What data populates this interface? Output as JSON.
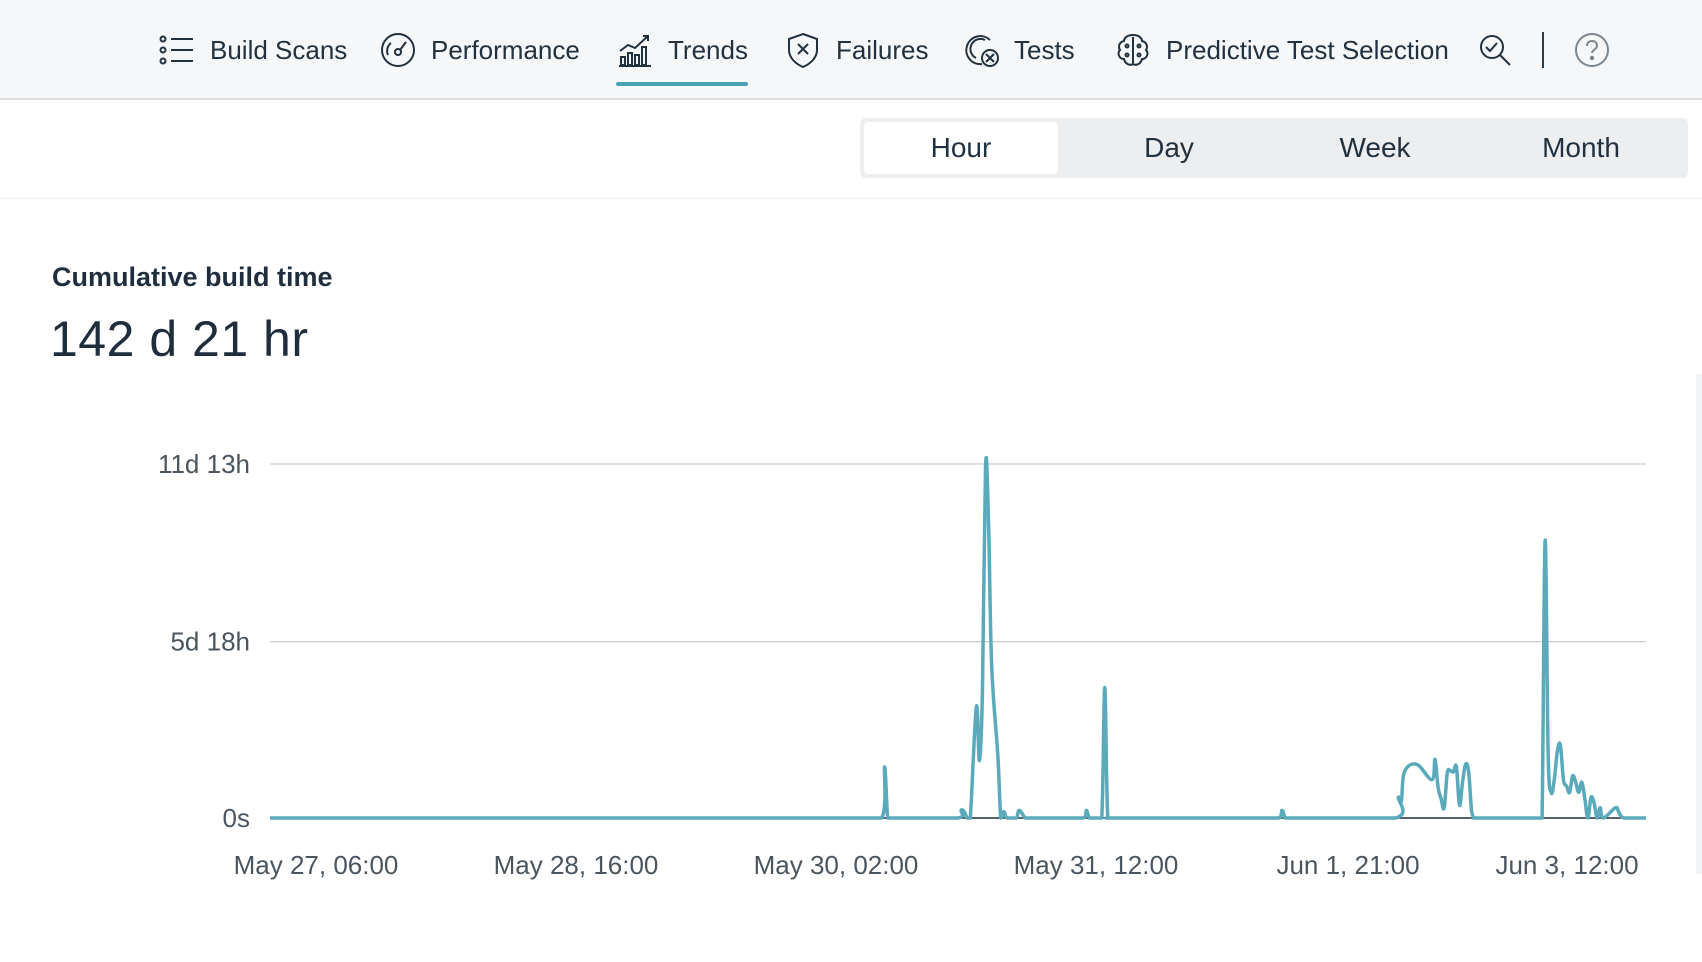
{
  "nav": {
    "items": [
      {
        "label": "Build Scans",
        "icon": "list-icon"
      },
      {
        "label": "Performance",
        "icon": "gauge-icon"
      },
      {
        "label": "Trends",
        "icon": "trend-chart-icon",
        "active": true
      },
      {
        "label": "Failures",
        "icon": "shield-x-icon"
      },
      {
        "label": "Tests",
        "icon": "tests-icon"
      },
      {
        "label": "Predictive Test Selection",
        "icon": "brain-icon"
      }
    ],
    "search_icon": "search-icon",
    "help_icon": "help-circle-icon",
    "accent": "#4aa3b5"
  },
  "granularity": {
    "options": [
      "Hour",
      "Day",
      "Week",
      "Month"
    ],
    "selected": "Hour"
  },
  "metric": {
    "label": "Cumulative build time",
    "value": "142 d 21 hr"
  },
  "chart_data": {
    "type": "line",
    "title": "",
    "xlabel": "",
    "ylabel": "",
    "y_ticks": [
      "0s",
      "5d 18h",
      "11d 13h"
    ],
    "x_ticks": [
      "May 27, 06:00",
      "May 28, 16:00",
      "May 30, 02:00",
      "May 31, 12:00",
      "Jun 1, 21:00",
      "Jun 3, 12:00"
    ],
    "ylim_hours": [
      0,
      277
    ],
    "grid": true,
    "color": "#5aaabb",
    "series": [
      {
        "x_hour_index": [
          0,
          40,
          80,
          120,
          160,
          190,
          200,
          201,
          202,
          203,
          204,
          210,
          225,
          226,
          227,
          228,
          229,
          231,
          232,
          233,
          234,
          235,
          236,
          238,
          239,
          240,
          241,
          244,
          245,
          247,
          248,
          250,
          255,
          260,
          266,
          267,
          268,
          270,
          272,
          273,
          274,
          276,
          300,
          325,
          330,
          331,
          332,
          333,
          340,
          368,
          369,
          370,
          371,
          375,
          380,
          381,
          382,
          383,
          384,
          385,
          386,
          387,
          388,
          389,
          390,
          391,
          392,
          393,
          394,
          395,
          410,
          411,
          412,
          413,
          414,
          415,
          416,
          417,
          418,
          419,
          420,
          421,
          422,
          423,
          424,
          425,
          426,
          427,
          428,
          429,
          430,
          431,
          432,
          433,
          434,
          435,
          436,
          440,
          441,
          442,
          443,
          444,
          445,
          446,
          447,
          448,
          449,
          450
        ],
        "y_hours": [
          0,
          0,
          0,
          0,
          0,
          0,
          0,
          40,
          0,
          0,
          0,
          0,
          0,
          6,
          5,
          0,
          0,
          87,
          45,
          100,
          275,
          230,
          120,
          50,
          0,
          5,
          0,
          0,
          6,
          0,
          0,
          0,
          0,
          0,
          0,
          6,
          0,
          0,
          0,
          102,
          0,
          0,
          0,
          0,
          0,
          6,
          0,
          0,
          0,
          0,
          16,
          13,
          36,
          42,
          30,
          46,
          24,
          15,
          8,
          35,
          37,
          36,
          40,
          10,
          28,
          42,
          36,
          5,
          0,
          0,
          0,
          0,
          0,
          0,
          0,
          0,
          0,
          217,
          50,
          20,
          30,
          52,
          57,
          30,
          25,
          20,
          33,
          28,
          20,
          28,
          15,
          0,
          16,
          12,
          0,
          8,
          0,
          8,
          5,
          1,
          0,
          0,
          0,
          0,
          0,
          0,
          0,
          0
        ]
      }
    ]
  }
}
